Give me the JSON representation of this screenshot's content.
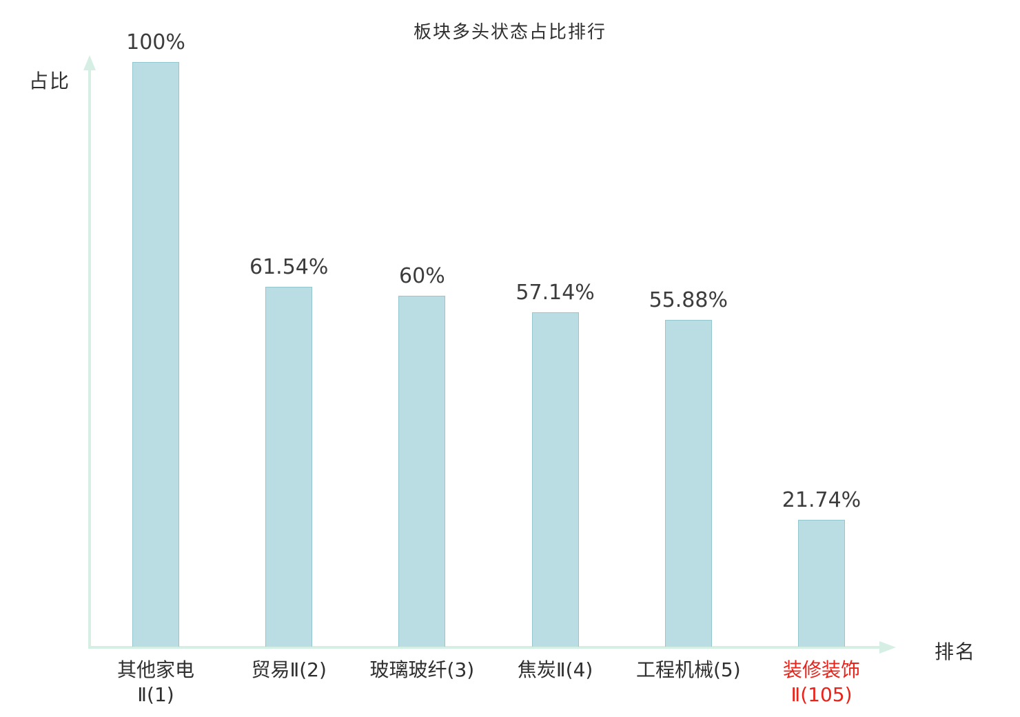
{
  "chart_data": {
    "type": "bar",
    "title": "板块多头状态占比排行",
    "xlabel": "排名",
    "ylabel": "占比",
    "ylim": [
      0,
      100
    ],
    "grid": false,
    "legend": "none",
    "categories": [
      "其他家电Ⅱ(1)",
      "贸易Ⅱ(2)",
      "玻璃玻纤(3)",
      "焦炭Ⅱ(4)",
      "工程机械(5)",
      "装修装饰Ⅱ(105)"
    ],
    "values": [
      100,
      61.54,
      60,
      57.14,
      55.88,
      21.74
    ],
    "bars": [
      {
        "label_lines": [
          "其他家电",
          "Ⅱ(1)"
        ],
        "value": 100,
        "value_label": "100%",
        "highlight": false
      },
      {
        "label_lines": [
          "贸易Ⅱ(2)"
        ],
        "value": 61.54,
        "value_label": "61.54%",
        "highlight": false
      },
      {
        "label_lines": [
          "玻璃玻纤(3)"
        ],
        "value": 60,
        "value_label": "60%",
        "highlight": false
      },
      {
        "label_lines": [
          "焦炭Ⅱ(4)"
        ],
        "value": 57.14,
        "value_label": "57.14%",
        "highlight": false
      },
      {
        "label_lines": [
          "工程机械(5)"
        ],
        "value": 55.88,
        "value_label": "55.88%",
        "highlight": false
      },
      {
        "label_lines": [
          "装修装饰",
          "Ⅱ(105)"
        ],
        "value": 21.74,
        "value_label": "21.74%",
        "highlight": true
      }
    ],
    "colors": {
      "bar_fill": "#b9dde2",
      "bar_border": "#94c6ce",
      "axis": "#d6efe4",
      "text": "#3c3c3c",
      "highlight": "#e8231a",
      "background": "#ffffff"
    }
  }
}
